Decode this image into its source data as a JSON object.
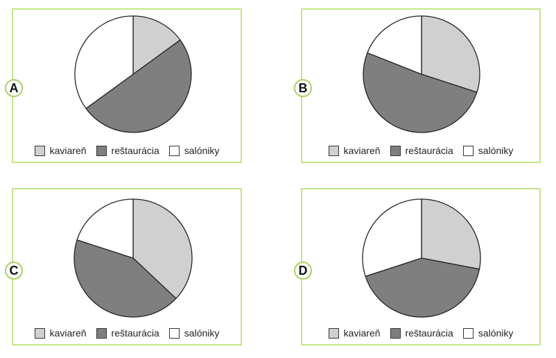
{
  "colors": {
    "kaviaren": "#d0d0d0",
    "restauracia": "#7f7f7f",
    "saloniky": "#ffffff",
    "panel_border": "#c5e486",
    "badge_border": "#a9d261"
  },
  "chart_data": [
    {
      "type": "pie",
      "panel_label": "A",
      "categories": [
        "kaviareň",
        "reštaurácia",
        "salóniky"
      ],
      "values": [
        15,
        50,
        35
      ],
      "start": "top, clockwise"
    },
    {
      "type": "pie",
      "panel_label": "B",
      "categories": [
        "kaviareň",
        "reštaurácia",
        "salóniky"
      ],
      "values": [
        30,
        51,
        19
      ],
      "start": "top, clockwise"
    },
    {
      "type": "pie",
      "panel_label": "C",
      "categories": [
        "kaviareň",
        "reštaurácia",
        "salóniky"
      ],
      "values": [
        37,
        43,
        20
      ],
      "start": "top, clockwise"
    },
    {
      "type": "pie",
      "panel_label": "D",
      "categories": [
        "kaviareň",
        "reštaurácia",
        "salóniky"
      ],
      "values": [
        28,
        42,
        30
      ],
      "start": "top, clockwise"
    }
  ]
}
